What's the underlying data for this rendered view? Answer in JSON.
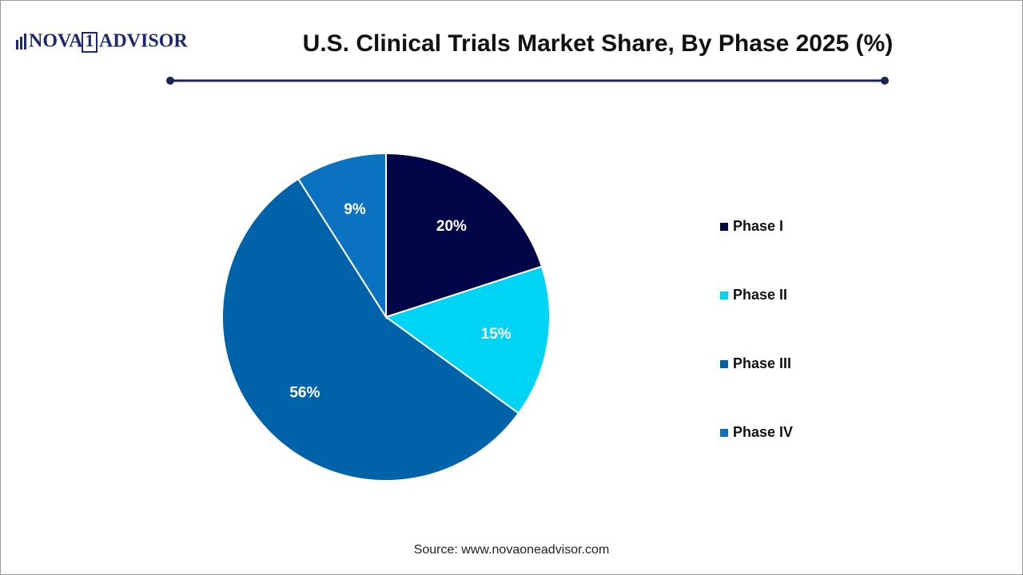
{
  "logo": {
    "left": "NOVA",
    "box": "1",
    "right": "ADVISOR"
  },
  "chart_data": {
    "type": "pie",
    "title": "U.S. Clinical Trials Market Share, By Phase 2025 (%)",
    "categories": [
      "Phase I",
      "Phase II",
      "Phase III",
      "Phase IV"
    ],
    "values": [
      20,
      15,
      56,
      9
    ],
    "value_labels": [
      "20%",
      "15%",
      "56%",
      "9%"
    ],
    "colors": [
      "#020649",
      "#00d4f5",
      "#0062a8",
      "#0a72c0"
    ],
    "legend": "right",
    "source": "Source: www.novaoneadvisor.com"
  }
}
